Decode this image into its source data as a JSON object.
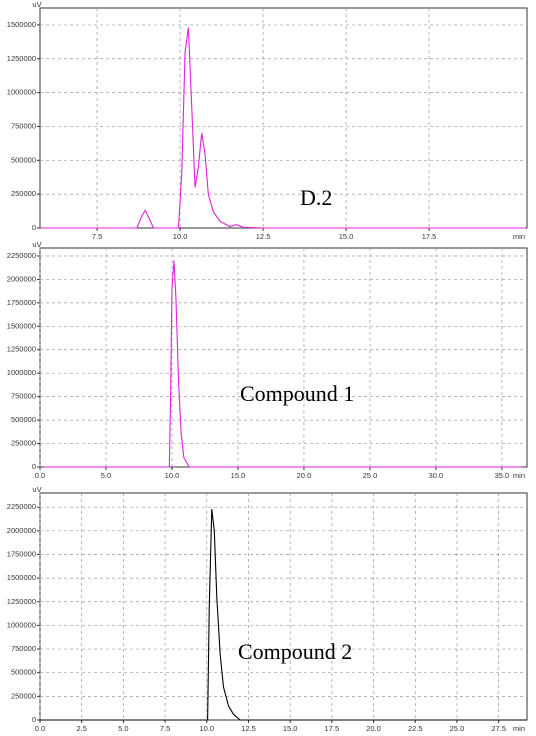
{
  "chart_data": [
    {
      "type": "line",
      "annotation": "D.2",
      "x_label": "min",
      "y_label": "uV",
      "color": "#e020e0",
      "grid": true,
      "xlim": [
        5.78,
        20.45
      ],
      "ylim": [
        0,
        1625000
      ],
      "xticks": [
        7.5,
        {
          "value": 10,
          "label": "10.0"
        },
        12.5,
        {
          "value": 15,
          "label": "15.0"
        },
        17.5
      ],
      "yticks": [
        0,
        250000,
        500000,
        750000,
        1000000,
        1250000,
        1500000
      ],
      "x": [
        5.8,
        8.7,
        8.85,
        8.95,
        9.05,
        9.2,
        9.95,
        10.05,
        10.15,
        10.25,
        10.35,
        10.45,
        10.55,
        10.65,
        10.75,
        10.85,
        11.0,
        11.2,
        11.5,
        11.7,
        11.9,
        12.5,
        20.4
      ],
      "values": [
        0,
        0,
        90000,
        130000,
        80000,
        0,
        0,
        400000,
        1300000,
        1480000,
        900000,
        300000,
        450000,
        700000,
        550000,
        250000,
        120000,
        50000,
        10000,
        25000,
        5000,
        0,
        0
      ]
    },
    {
      "type": "line",
      "annotation": "Compound 1",
      "x_label": "min",
      "y_label": "uV",
      "color": "#e020e0",
      "grid": true,
      "xlim": [
        0,
        36.9
      ],
      "ylim": [
        0,
        2335000
      ],
      "xticks": [
        {
          "value": 0,
          "label": "0.0"
        },
        {
          "value": 5,
          "label": "5.0"
        },
        {
          "value": 10,
          "label": "10.0"
        },
        {
          "value": 15,
          "label": "15.0"
        },
        {
          "value": 20,
          "label": "20.0"
        },
        {
          "value": 25,
          "label": "25.0"
        },
        {
          "value": 30,
          "label": "30.0"
        },
        {
          "value": 35,
          "label": "35.0"
        }
      ],
      "yticks": [
        0,
        250000,
        500000,
        750000,
        1000000,
        1250000,
        1500000,
        1750000,
        2000000,
        2250000
      ],
      "x": [
        0.3,
        9.8,
        9.9,
        10.0,
        10.15,
        10.3,
        10.5,
        10.7,
        10.9,
        11.3,
        36.5
      ],
      "values": [
        0,
        0,
        800000,
        1900000,
        2200000,
        1800000,
        900000,
        350000,
        100000,
        0,
        0
      ]
    },
    {
      "type": "line",
      "annotation": "Compound 2",
      "x_label": "min",
      "y_label": "uV",
      "color": "#000000",
      "grid": true,
      "xlim": [
        0,
        29.2
      ],
      "ylim": [
        0,
        2400000
      ],
      "xticks": [
        {
          "value": 0,
          "label": "0.0"
        },
        2.5,
        {
          "value": 5,
          "label": "5.0"
        },
        7.5,
        {
          "value": 10,
          "label": "10.0"
        },
        12.5,
        {
          "value": 15,
          "label": "15.0"
        },
        17.5,
        {
          "value": 20,
          "label": "20.0"
        },
        22.5,
        {
          "value": 25,
          "label": "25.0"
        },
        27.5
      ],
      "yticks": [
        0,
        250000,
        500000,
        750000,
        1000000,
        1250000,
        1500000,
        1750000,
        2000000,
        2250000
      ],
      "x": [
        0,
        10.05,
        10.15,
        10.3,
        10.45,
        10.6,
        10.8,
        11.0,
        11.3,
        11.6,
        12.0,
        29.2
      ],
      "values": [
        0,
        0,
        1200000,
        2230000,
        2000000,
        1300000,
        700000,
        350000,
        150000,
        60000,
        0,
        0
      ]
    }
  ]
}
